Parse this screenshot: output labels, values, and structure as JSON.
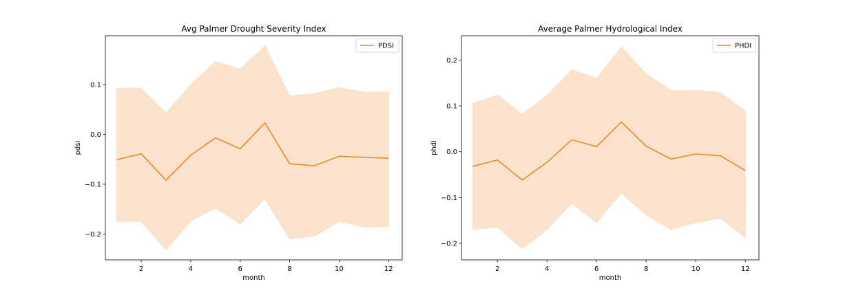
{
  "colors": {
    "line": "#f28021",
    "band": "#fbe2cd",
    "axis": "#000000",
    "legend_border": "#cccccc"
  },
  "chart_data": [
    {
      "type": "line",
      "title": "Avg Palmer Drought Severity Index",
      "xlabel": "month",
      "ylabel": "pdsi",
      "x": [
        1,
        2,
        3,
        4,
        5,
        6,
        7,
        8,
        9,
        10,
        11,
        12
      ],
      "series": [
        {
          "name": "PDSI",
          "values": [
            -0.051,
            -0.039,
            -0.092,
            -0.042,
            -0.007,
            -0.029,
            0.023,
            -0.059,
            -0.063,
            -0.044,
            -0.046,
            -0.048
          ],
          "lower": [
            -0.175,
            -0.175,
            -0.232,
            -0.174,
            -0.148,
            -0.18,
            -0.13,
            -0.21,
            -0.205,
            -0.175,
            -0.186,
            -0.185
          ],
          "upper": [
            0.093,
            0.093,
            0.043,
            0.1,
            0.146,
            0.131,
            0.178,
            0.077,
            0.082,
            0.094,
            0.085,
            0.085
          ]
        }
      ],
      "xlim": [
        0.55,
        12.55
      ],
      "ylim": [
        -0.252,
        0.198
      ],
      "xticks": [
        2,
        4,
        6,
        8,
        10,
        12
      ],
      "xtick_labels": [
        "2",
        "4",
        "6",
        "8",
        "10",
        "12"
      ],
      "yticks": [
        -0.2,
        -0.1,
        0.0,
        0.1
      ],
      "ytick_labels": [
        "−0.2",
        "−0.1",
        "0.0",
        "0.1"
      ],
      "legend": "top-right",
      "grid": false
    },
    {
      "type": "line",
      "title": "Average Palmer Hydrological Index",
      "xlabel": "month",
      "ylabel": "phdi",
      "x": [
        1,
        2,
        3,
        4,
        5,
        6,
        7,
        8,
        9,
        10,
        11,
        12
      ],
      "series": [
        {
          "name": "PHDI",
          "values": [
            -0.032,
            -0.018,
            -0.062,
            -0.023,
            0.026,
            0.011,
            0.065,
            0.012,
            -0.016,
            -0.005,
            -0.009,
            -0.041
          ],
          "lower": [
            -0.17,
            -0.165,
            -0.212,
            -0.17,
            -0.113,
            -0.155,
            -0.09,
            -0.138,
            -0.17,
            -0.155,
            -0.145,
            -0.188
          ],
          "upper": [
            0.105,
            0.124,
            0.082,
            0.123,
            0.179,
            0.16,
            0.229,
            0.17,
            0.134,
            0.134,
            0.129,
            0.089
          ]
        }
      ],
      "xlim": [
        0.55,
        12.55
      ],
      "ylim": [
        -0.236,
        0.253
      ],
      "xticks": [
        2,
        4,
        6,
        8,
        10,
        12
      ],
      "xtick_labels": [
        "2",
        "4",
        "6",
        "8",
        "10",
        "12"
      ],
      "yticks": [
        -0.2,
        -0.1,
        0.0,
        0.1,
        0.2
      ],
      "ytick_labels": [
        "−0.2",
        "−0.1",
        "0.0",
        "0.1",
        "0.2"
      ],
      "legend": "top-right",
      "grid": false
    }
  ]
}
